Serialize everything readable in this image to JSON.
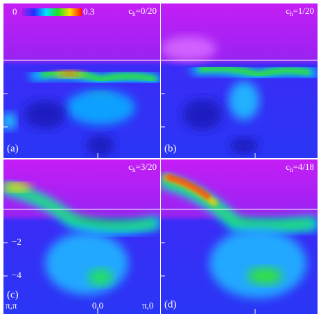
{
  "colorbar": {
    "min_label": 0,
    "max_label": 0.3
  },
  "panels": [
    {
      "label": "(a)",
      "symbol": "c",
      "subscript": "h",
      "doping": "=0/20"
    },
    {
      "label": "(b)",
      "symbol": "c",
      "subscript": "h",
      "doping": "=1/20"
    },
    {
      "label": "(c)",
      "symbol": "c",
      "subscript": "h",
      "doping": "=3/20"
    },
    {
      "label": "(d)",
      "symbol": "c",
      "subscript": "h",
      "doping": "=4/18"
    }
  ],
  "yticks": [
    {
      "value": -2,
      "label": "−2"
    },
    {
      "value": -4,
      "label": "−4"
    }
  ],
  "xlabels": [
    "π,π",
    "0,0",
    "π,0"
  ]
}
